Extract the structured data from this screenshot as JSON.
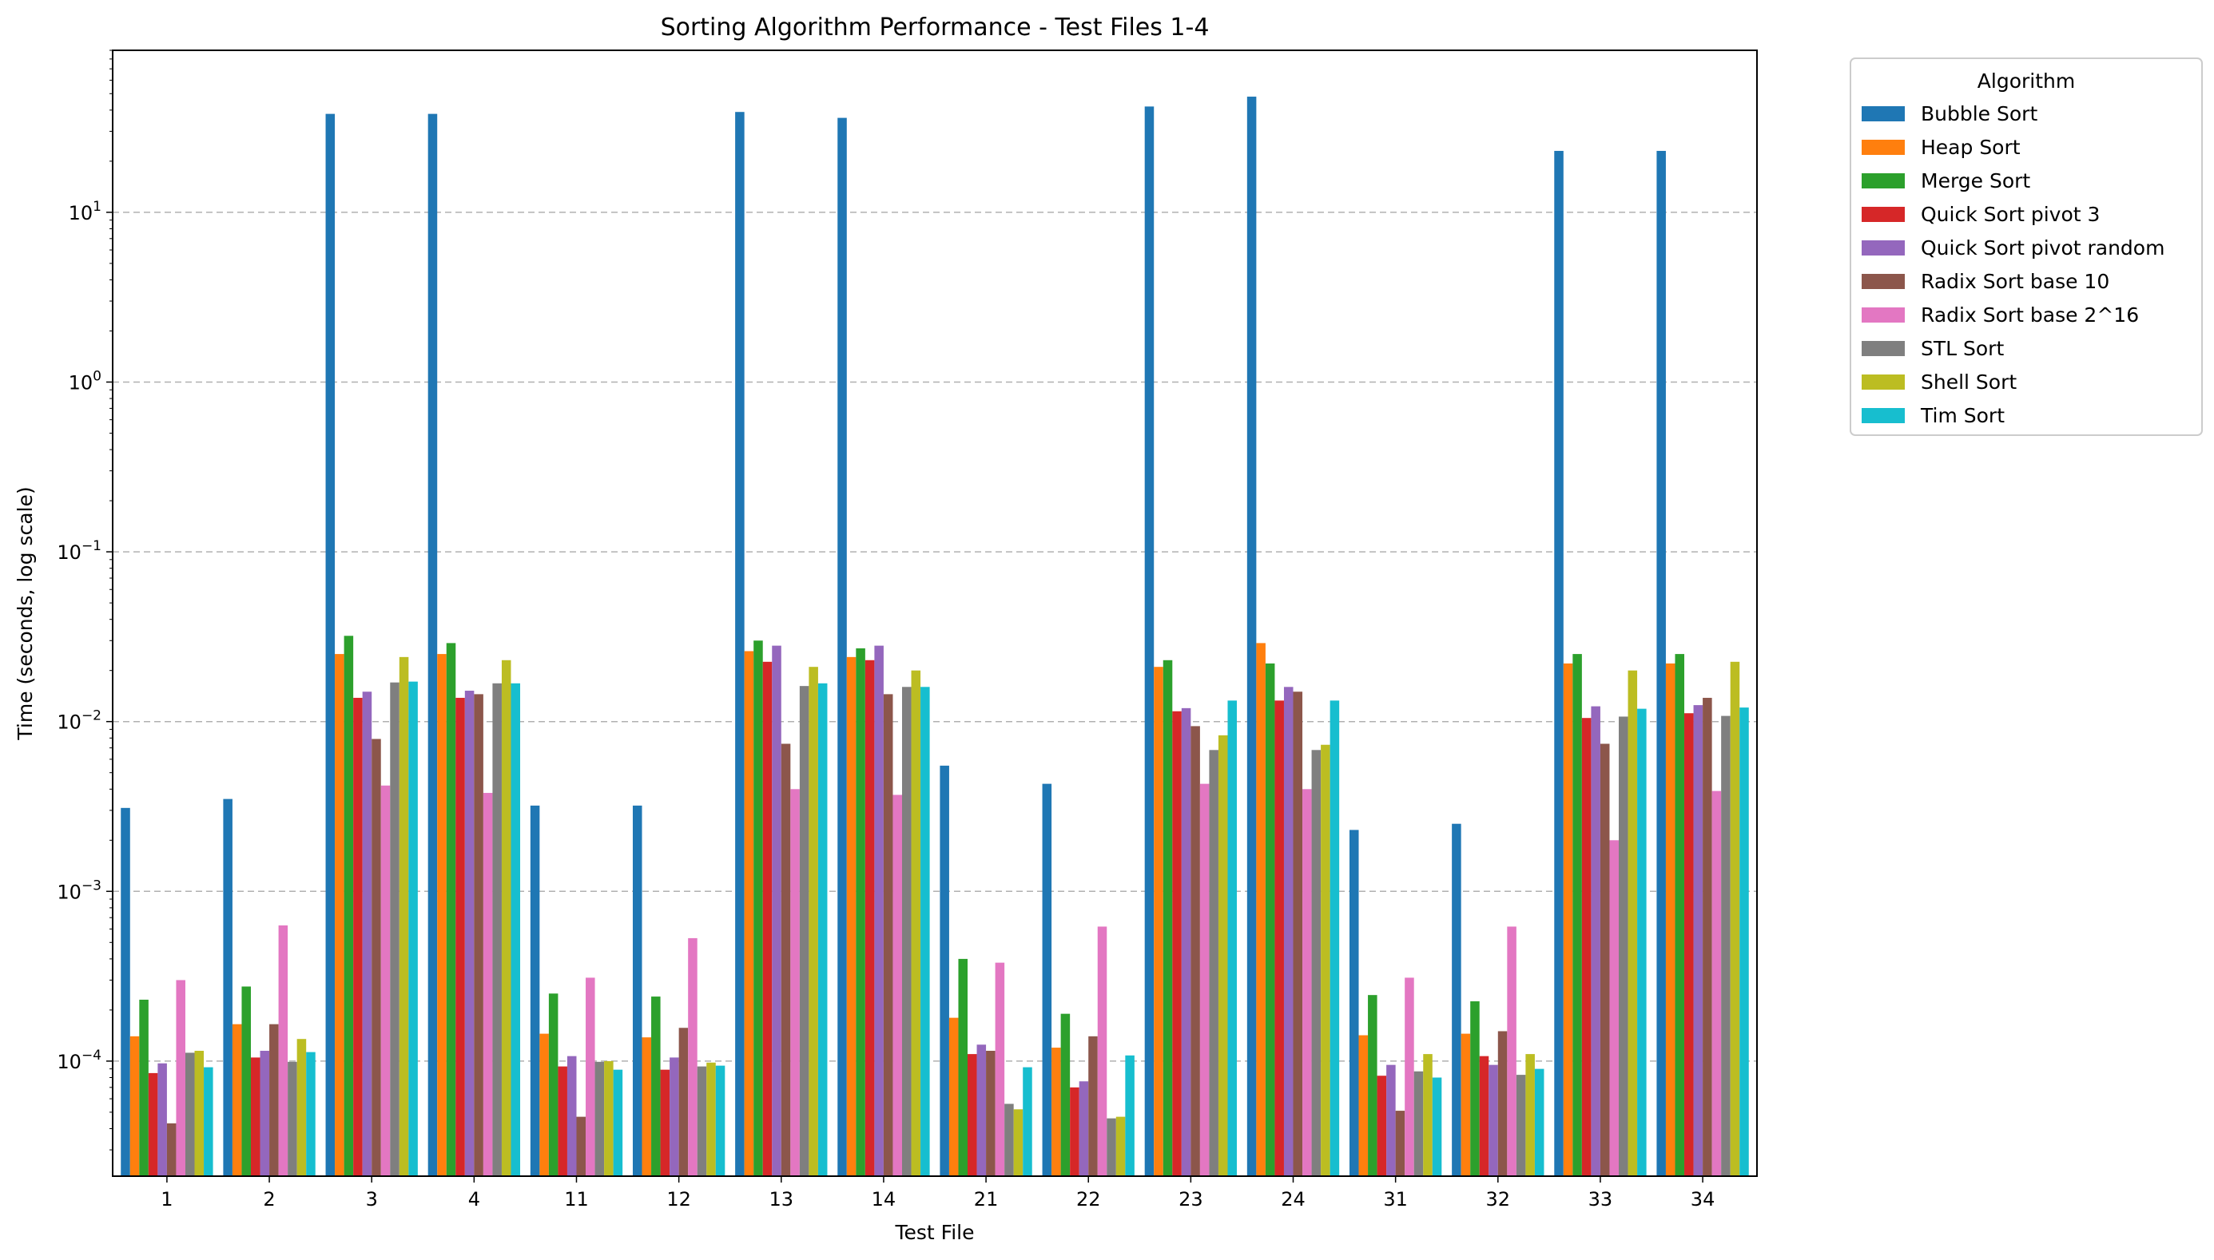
{
  "chart_data": {
    "type": "bar",
    "title": "Sorting Algorithm Performance - Test Files 1-4",
    "xlabel": "Test File",
    "ylabel": "Time (seconds, log scale)",
    "yscale": "log",
    "ylim": [
      2.1e-05,
      90
    ],
    "y_ticks": [
      {
        "value": 0.0001,
        "base": "10",
        "exp": "−4"
      },
      {
        "value": 0.001,
        "base": "10",
        "exp": "−3"
      },
      {
        "value": 0.01,
        "base": "10",
        "exp": "−2"
      },
      {
        "value": 0.1,
        "base": "10",
        "exp": "−1"
      },
      {
        "value": 1,
        "base": "10",
        "exp": "0"
      },
      {
        "value": 10,
        "base": "10",
        "exp": "1"
      }
    ],
    "grid": "horizontal dashed",
    "legend": {
      "title": "Algorithm",
      "placement": "outside upper-right"
    },
    "categories": [
      "1",
      "2",
      "3",
      "4",
      "11",
      "12",
      "13",
      "14",
      "21",
      "22",
      "23",
      "24",
      "31",
      "32",
      "33",
      "34"
    ],
    "series": [
      {
        "name": "Bubble Sort",
        "color": "#1f77b4",
        "values": [
          0.0031,
          0.0035,
          38,
          38,
          0.0032,
          0.0032,
          39,
          36,
          0.0055,
          0.0043,
          42,
          48,
          0.0023,
          0.0025,
          23,
          23
        ]
      },
      {
        "name": "Heap Sort",
        "color": "#ff7f0e",
        "values": [
          0.00014,
          0.000165,
          0.025,
          0.025,
          0.000145,
          0.000138,
          0.026,
          0.024,
          0.00018,
          0.00012,
          0.021,
          0.029,
          0.000142,
          0.000145,
          0.022,
          0.022
        ]
      },
      {
        "name": "Merge Sort",
        "color": "#2ca02c",
        "values": [
          0.00023,
          0.000275,
          0.032,
          0.029,
          0.00025,
          0.00024,
          0.03,
          0.027,
          0.0004,
          0.00019,
          0.023,
          0.022,
          0.000245,
          0.000225,
          0.025,
          0.025
        ]
      },
      {
        "name": "Quick Sort pivot 3",
        "color": "#d62728",
        "values": [
          8.5e-05,
          0.000105,
          0.0138,
          0.0138,
          9.3e-05,
          8.9e-05,
          0.0225,
          0.023,
          0.00011,
          7e-05,
          0.0115,
          0.0133,
          8.2e-05,
          0.000107,
          0.0105,
          0.0112
        ]
      },
      {
        "name": "Quick Sort pivot random",
        "color": "#9467bd",
        "values": [
          9.7e-05,
          0.000115,
          0.015,
          0.0152,
          0.000107,
          0.000105,
          0.028,
          0.028,
          0.000125,
          7.6e-05,
          0.012,
          0.016,
          9.5e-05,
          9.5e-05,
          0.0123,
          0.0125
        ]
      },
      {
        "name": "Radix Sort base 10",
        "color": "#8c564b",
        "values": [
          4.3e-05,
          0.000165,
          0.0079,
          0.0145,
          4.7e-05,
          0.000157,
          0.0074,
          0.0145,
          0.000115,
          0.00014,
          0.0094,
          0.015,
          5.1e-05,
          0.00015,
          0.0074,
          0.0138
        ]
      },
      {
        "name": "Radix Sort base 2^16",
        "color": "#e377c2",
        "values": [
          0.0003,
          0.00063,
          0.0042,
          0.0038,
          0.00031,
          0.00053,
          0.004,
          0.0037,
          0.00038,
          0.00062,
          0.0043,
          0.004,
          0.00031,
          0.00062,
          0.002,
          0.0039
        ]
      },
      {
        "name": "STL Sort",
        "color": "#7f7f7f",
        "values": [
          0.000112,
          9.9e-05,
          0.017,
          0.0168,
          9.9e-05,
          9.3e-05,
          0.0162,
          0.016,
          5.6e-05,
          4.6e-05,
          0.0068,
          0.0068,
          8.7e-05,
          8.3e-05,
          0.0107,
          0.0108
        ]
      },
      {
        "name": "Shell Sort",
        "color": "#bcbd22",
        "values": [
          0.000115,
          0.000135,
          0.024,
          0.023,
          0.0001,
          9.8e-05,
          0.021,
          0.02,
          5.2e-05,
          4.7e-05,
          0.0083,
          0.0073,
          0.00011,
          0.00011,
          0.02,
          0.0225
        ]
      },
      {
        "name": "Tim Sort",
        "color": "#17becf",
        "values": [
          9.2e-05,
          0.000113,
          0.0172,
          0.0168,
          8.9e-05,
          9.4e-05,
          0.0168,
          0.016,
          9.2e-05,
          0.000108,
          0.0133,
          0.0133,
          8e-05,
          9e-05,
          0.0119,
          0.0121
        ]
      }
    ]
  }
}
